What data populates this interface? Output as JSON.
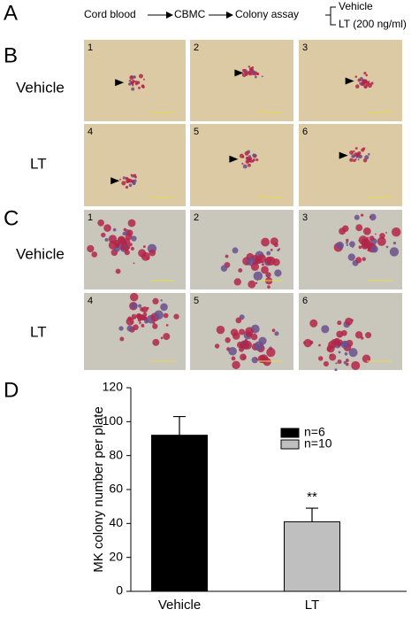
{
  "panel_a": {
    "label": "A",
    "steps": [
      "Cord blood",
      "CBMC",
      "Colony assay"
    ],
    "branches": [
      "Vehicle",
      "LT (200 ng/ml)"
    ]
  },
  "panel_b": {
    "label": "B",
    "rows": [
      "Vehicle",
      "LT"
    ],
    "numbers": [
      "1",
      "2",
      "3",
      "4",
      "5",
      "6"
    ]
  },
  "panel_c": {
    "label": "C",
    "rows": [
      "Vehicle",
      "LT"
    ],
    "numbers": [
      "1",
      "2",
      "3",
      "4",
      "5",
      "6"
    ]
  },
  "chart_data": {
    "type": "bar",
    "panel_label": "D",
    "y_label": "MK colony number per plate",
    "categories": [
      "Vehicle",
      "LT"
    ],
    "values": [
      92,
      41
    ],
    "errors": [
      11,
      8
    ],
    "colors": [
      "#000000",
      "#bfbfbf"
    ],
    "legend": [
      "n=6",
      "n=10"
    ],
    "legend_position": "upper right",
    "annotations": [
      {
        "category": 1,
        "text": "**"
      }
    ],
    "ylim": [
      0,
      120
    ],
    "yticks": [
      0,
      20,
      40,
      60,
      80,
      100,
      120
    ]
  }
}
